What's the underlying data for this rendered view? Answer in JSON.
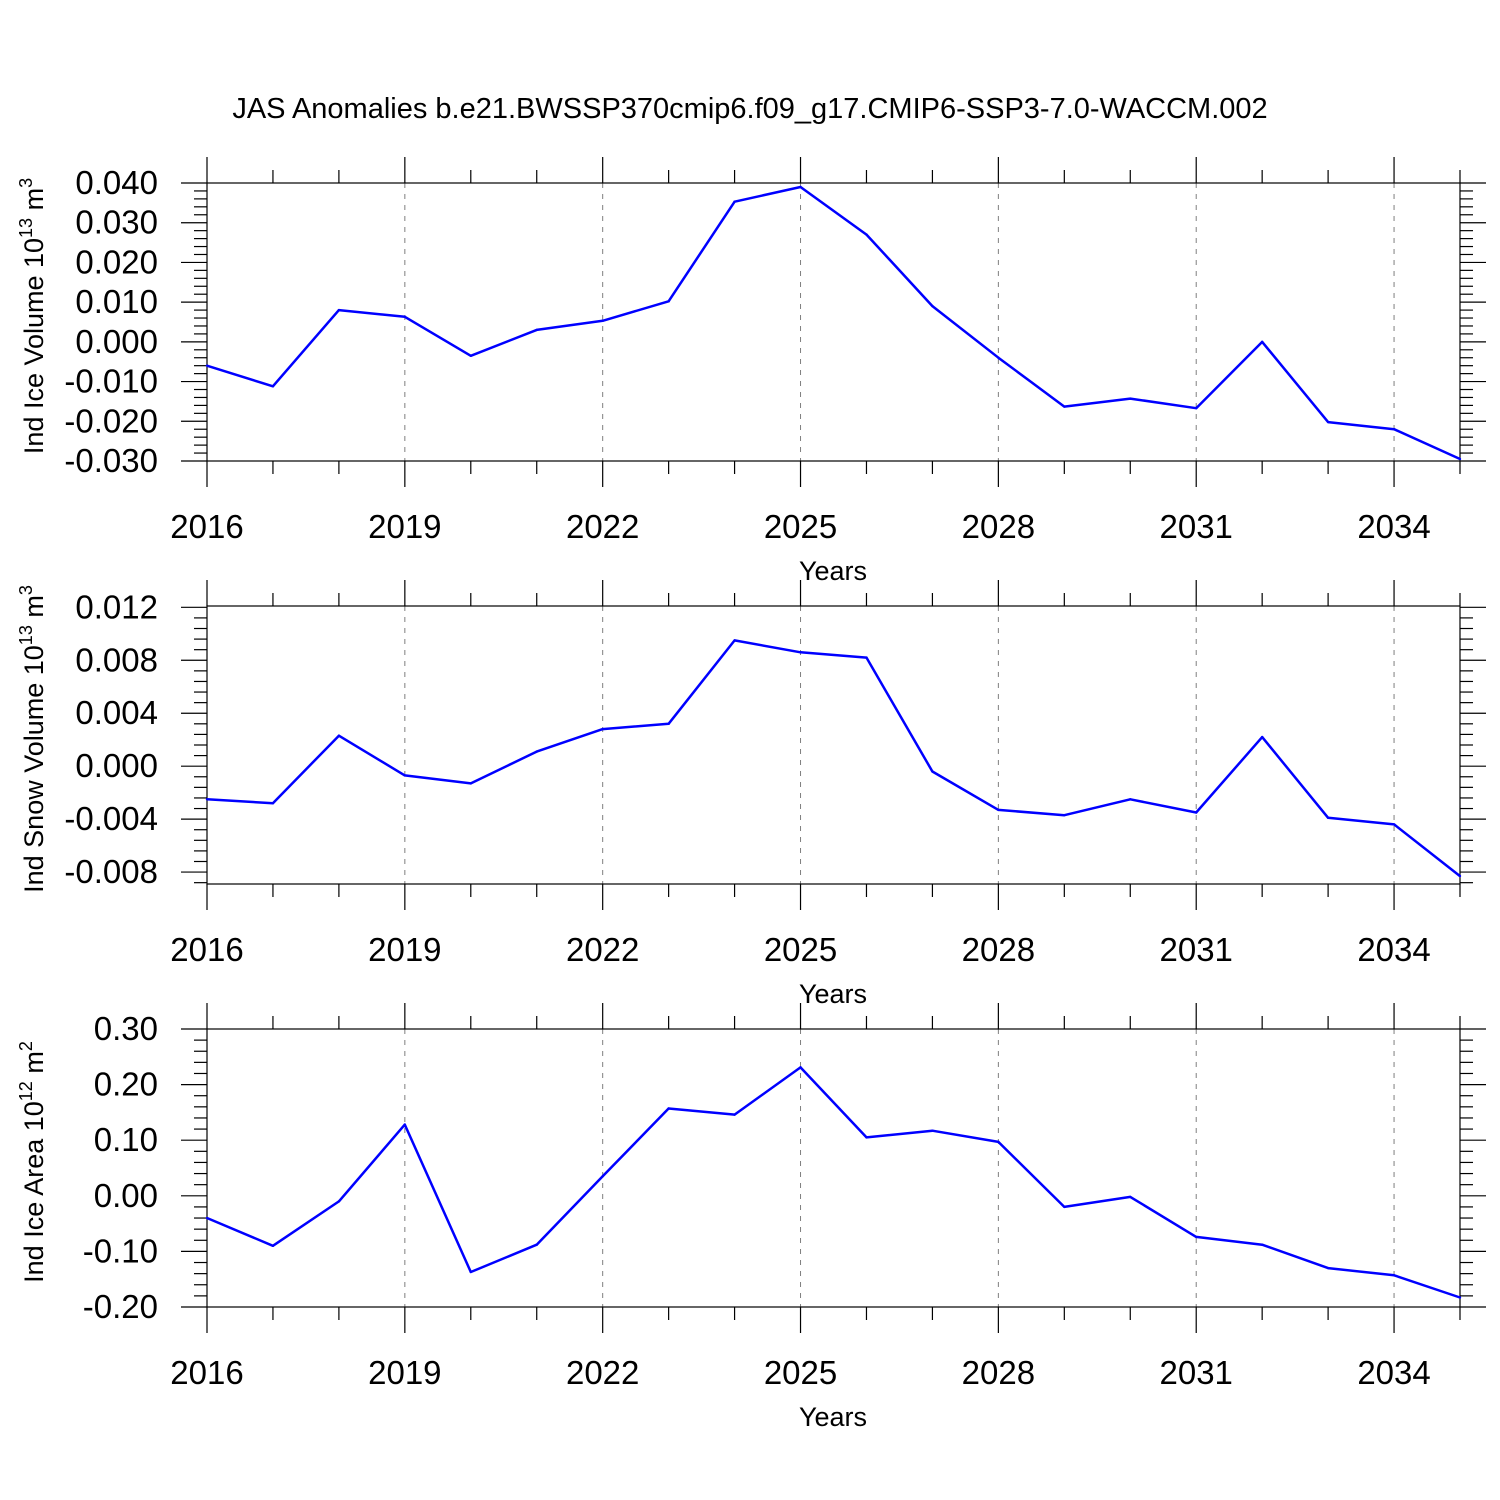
{
  "figure_title": "JAS Anomalies b.e21.BWSSP370cmip6.f09_g17.CMIP6-SSP3-7.0-WACCM.002",
  "colors": {
    "series": "#0000ff",
    "frame": "#000000",
    "grid": "#7f7f7f"
  },
  "chart_data": [
    {
      "type": "line",
      "ylabel": {
        "main": "Ind Ice Volume 10",
        "exp": "13",
        "unit": " m",
        "unit_exp": "3"
      },
      "xlabel": "Years",
      "xlim": [
        2016,
        2035
      ],
      "ylim": [
        -0.03,
        0.04
      ],
      "x_major_ticks": [
        2016,
        2019,
        2022,
        2025,
        2028,
        2031,
        2034
      ],
      "x_tick_labels": [
        "2016",
        "2019",
        "2022",
        "2025",
        "2028",
        "2031",
        "2034"
      ],
      "x_minor_ticks": [
        2017,
        2018,
        2020,
        2021,
        2023,
        2024,
        2026,
        2027,
        2029,
        2030,
        2032,
        2033,
        2035
      ],
      "y_ticks": [
        0.04,
        0.03,
        0.02,
        0.01,
        0.0,
        -0.01,
        -0.02,
        -0.03
      ],
      "y_tick_labels": [
        "0.040",
        "0.030",
        "0.020",
        "0.010",
        "0.000",
        "-0.010",
        "-0.020",
        "-0.030"
      ],
      "y_minor_step": 0.002,
      "x": [
        2016,
        2017,
        2018,
        2019,
        2020,
        2021,
        2022,
        2023,
        2024,
        2025,
        2026,
        2027,
        2028,
        2029,
        2030,
        2031,
        2032,
        2033,
        2034,
        2035
      ],
      "series": [
        {
          "name": "Ind Ice Volume",
          "values": [
            -0.006,
            -0.0112,
            0.008,
            0.0063,
            -0.0035,
            0.003,
            0.0053,
            0.0102,
            0.0353,
            0.039,
            0.027,
            0.009,
            -0.004,
            -0.0163,
            -0.0143,
            -0.0167,
            0.0,
            -0.0202,
            -0.022,
            -0.0295
          ]
        }
      ]
    },
    {
      "type": "line",
      "ylabel": {
        "main": "Ind Snow Volume 10",
        "exp": "13",
        "unit": " m",
        "unit_exp": "3"
      },
      "xlabel": "Years",
      "xlim": [
        2016,
        2035
      ],
      "ylim": [
        -0.0089,
        0.0121
      ],
      "x_major_ticks": [
        2016,
        2019,
        2022,
        2025,
        2028,
        2031,
        2034
      ],
      "x_tick_labels": [
        "2016",
        "2019",
        "2022",
        "2025",
        "2028",
        "2031",
        "2034"
      ],
      "x_minor_ticks": [
        2017,
        2018,
        2020,
        2021,
        2023,
        2024,
        2026,
        2027,
        2029,
        2030,
        2032,
        2033,
        2035
      ],
      "y_ticks": [
        0.012,
        0.008,
        0.004,
        0.0,
        -0.004,
        -0.008
      ],
      "y_tick_labels": [
        "0.012",
        "0.008",
        "0.004",
        "0.000",
        "-0.004",
        "-0.008"
      ],
      "y_minor_step": 0.0008,
      "x": [
        2016,
        2017,
        2018,
        2019,
        2020,
        2021,
        2022,
        2023,
        2024,
        2025,
        2026,
        2027,
        2028,
        2029,
        2030,
        2031,
        2032,
        2033,
        2034,
        2035
      ],
      "series": [
        {
          "name": "Ind Snow Volume",
          "values": [
            -0.0025,
            -0.0028,
            0.0023,
            -0.0007,
            -0.0013,
            0.0011,
            0.0028,
            0.0032,
            0.0095,
            0.0086,
            0.0082,
            -0.0004,
            -0.0033,
            -0.0037,
            -0.0025,
            -0.0035,
            0.0022,
            -0.0039,
            -0.0044,
            -0.0083
          ]
        }
      ]
    },
    {
      "type": "line",
      "ylabel": {
        "main": "Ind Ice Area 10",
        "exp": "12",
        "unit": " m",
        "unit_exp": "2"
      },
      "xlabel": "Years",
      "xlim": [
        2016,
        2035
      ],
      "ylim": [
        -0.2,
        0.3
      ],
      "x_major_ticks": [
        2016,
        2019,
        2022,
        2025,
        2028,
        2031,
        2034
      ],
      "x_tick_labels": [
        "2016",
        "2019",
        "2022",
        "2025",
        "2028",
        "2031",
        "2034"
      ],
      "x_minor_ticks": [
        2017,
        2018,
        2020,
        2021,
        2023,
        2024,
        2026,
        2027,
        2029,
        2030,
        2032,
        2033,
        2035
      ],
      "y_ticks": [
        0.3,
        0.2,
        0.1,
        0.0,
        -0.1,
        -0.2
      ],
      "y_tick_labels": [
        "0.30",
        "0.20",
        "0.10",
        "0.00",
        "-0.10",
        "-0.20"
      ],
      "y_minor_step": 0.02,
      "x": [
        2016,
        2017,
        2018,
        2019,
        2020,
        2021,
        2022,
        2023,
        2024,
        2025,
        2026,
        2027,
        2028,
        2029,
        2030,
        2031,
        2032,
        2033,
        2034,
        2035
      ],
      "series": [
        {
          "name": "Ind Ice Area",
          "values": [
            -0.04,
            -0.09,
            -0.01,
            0.128,
            -0.137,
            -0.088,
            0.035,
            0.157,
            0.146,
            0.231,
            0.105,
            0.117,
            0.097,
            -0.02,
            -0.002,
            -0.074,
            -0.088,
            -0.13,
            -0.143,
            -0.183
          ]
        }
      ]
    }
  ]
}
